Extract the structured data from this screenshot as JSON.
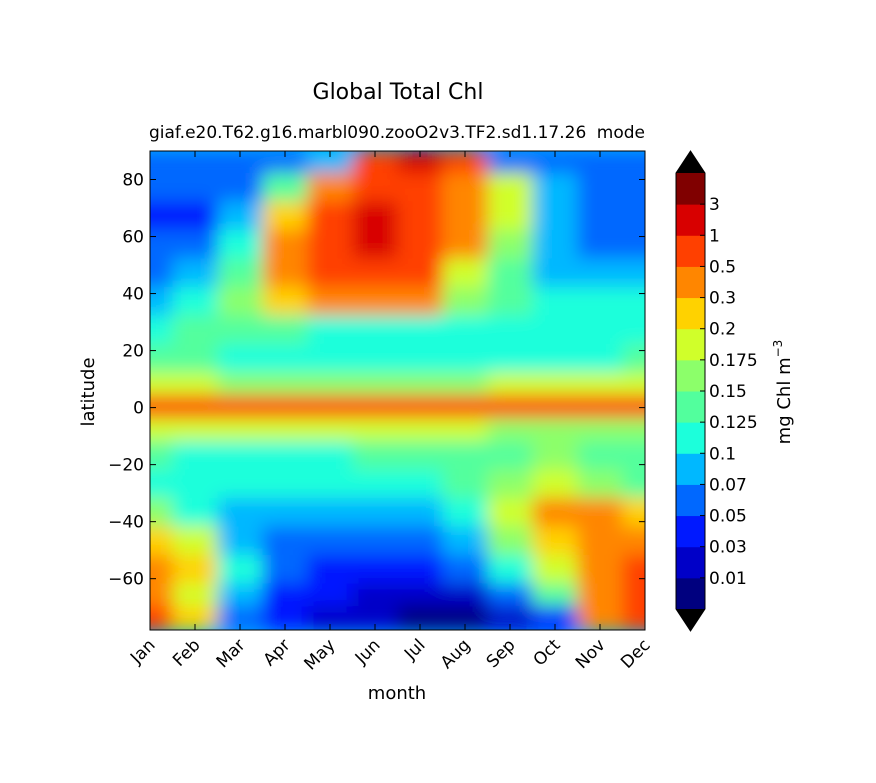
{
  "chart_data": {
    "type": "heatmap",
    "title": "Global Total Chl",
    "subtitle_left": "giaf.e20.T62.g16.marbl090.zooO2v3.TF2.sd1.17.26",
    "subtitle_right": "mode",
    "xlabel": "month",
    "ylabel": "latitude",
    "x_categories": [
      "Jan",
      "Feb",
      "Mar",
      "Apr",
      "May",
      "Jun",
      "Jul",
      "Aug",
      "Sep",
      "Oct",
      "Nov",
      "Dec"
    ],
    "ylim": [
      -78,
      90
    ],
    "y_ticks": [
      "80",
      "60",
      "40",
      "20",
      "0",
      "−20",
      "−40",
      "−60"
    ],
    "y_tick_values": [
      80,
      60,
      40,
      20,
      0,
      -20,
      -40,
      -60
    ],
    "colorbar": {
      "label": "mg Chl m",
      "label_sup": "−3",
      "levels": [
        "0.01",
        "0.03",
        "0.05",
        "0.07",
        "0.1",
        "0.125",
        "0.15",
        "0.175",
        "0.2",
        "0.3",
        "0.5",
        "1",
        "3"
      ],
      "colors": [
        "#00007f",
        "#0000c8",
        "#0019ff",
        "#0068ff",
        "#00b8ff",
        "#1cffdb",
        "#52ff9d",
        "#8cff6a",
        "#d0ff2a",
        "#ffd200",
        "#ff8600",
        "#ff4000",
        "#d80000",
        "#800000"
      ],
      "under_color": "#000000",
      "over_color": "#000000"
    },
    "bands": [
      {
        "lat": [
          82,
          90
        ],
        "months": [
          "Jan",
          "Feb",
          "Mar",
          "Apr",
          "May",
          "Jun",
          "Jul",
          "Aug",
          "Sep",
          "Oct",
          "Nov",
          "Dec"
        ],
        "levels": [
          3,
          3,
          3,
          3,
          4,
          11,
          12,
          11,
          3,
          3,
          3,
          3
        ]
      },
      {
        "lat": [
          72,
          82
        ],
        "months": [
          "Jan",
          "Feb",
          "Mar",
          "Apr",
          "May",
          "Jun",
          "Jul",
          "Aug",
          "Sep",
          "Oct",
          "Nov",
          "Dec"
        ],
        "levels": [
          3,
          3,
          3,
          6,
          10,
          11,
          11,
          10,
          8,
          4,
          3,
          3
        ]
      },
      {
        "lat": [
          62,
          72
        ],
        "months": [
          "Jan",
          "Feb",
          "Mar",
          "Apr",
          "May",
          "Jun",
          "Jul",
          "Aug",
          "Sep",
          "Oct",
          "Nov",
          "Dec"
        ],
        "levels": [
          2,
          2,
          4,
          9,
          11,
          12,
          11,
          10,
          8,
          4,
          3,
          3
        ]
      },
      {
        "lat": [
          52,
          62
        ],
        "months": [
          "Jan",
          "Feb",
          "Mar",
          "Apr",
          "May",
          "Jun",
          "Jul",
          "Aug",
          "Sep",
          "Oct",
          "Nov",
          "Dec"
        ],
        "levels": [
          3,
          3,
          5,
          10,
          11,
          12,
          11,
          10,
          7,
          4,
          3,
          3
        ]
      },
      {
        "lat": [
          42,
          52
        ],
        "months": [
          "Jan",
          "Feb",
          "Mar",
          "Apr",
          "May",
          "Jun",
          "Jul",
          "Aug",
          "Sep",
          "Oct",
          "Nov",
          "Dec"
        ],
        "levels": [
          3,
          4,
          6,
          10,
          11,
          11,
          11,
          8,
          6,
          4,
          4,
          4
        ]
      },
      {
        "lat": [
          32,
          42
        ],
        "months": [
          "Jan",
          "Feb",
          "Mar",
          "Apr",
          "May",
          "Jun",
          "Jul",
          "Aug",
          "Sep",
          "Oct",
          "Nov",
          "Dec"
        ],
        "levels": [
          4,
          5,
          7,
          9,
          10,
          10,
          10,
          7,
          6,
          5,
          5,
          5
        ]
      },
      {
        "lat": [
          22,
          32
        ],
        "months": [
          "Jan",
          "Feb",
          "Mar",
          "Apr",
          "May",
          "Jun",
          "Jul",
          "Aug",
          "Sep",
          "Oct",
          "Nov",
          "Dec"
        ],
        "levels": [
          5,
          6,
          6,
          6,
          5,
          5,
          5,
          5,
          5,
          5,
          5,
          5
        ]
      },
      {
        "lat": [
          12,
          22
        ],
        "months": [
          "Jan",
          "Feb",
          "Mar",
          "Apr",
          "May",
          "Jun",
          "Jul",
          "Aug",
          "Sep",
          "Oct",
          "Nov",
          "Dec"
        ],
        "levels": [
          6,
          6,
          5,
          5,
          5,
          5,
          5,
          5,
          5,
          5,
          5,
          6
        ]
      },
      {
        "lat": [
          4,
          12
        ],
        "months": [
          "Jan",
          "Feb",
          "Mar",
          "Apr",
          "May",
          "Jun",
          "Jul",
          "Aug",
          "Sep",
          "Oct",
          "Nov",
          "Dec"
        ],
        "levels": [
          8,
          8,
          7,
          7,
          7,
          7,
          7,
          7,
          8,
          8,
          8,
          8
        ]
      },
      {
        "lat": [
          -4,
          4
        ],
        "months": [
          "Jan",
          "Feb",
          "Mar",
          "Apr",
          "May",
          "Jun",
          "Jul",
          "Aug",
          "Sep",
          "Oct",
          "Nov",
          "Dec"
        ],
        "levels": [
          11,
          11,
          11,
          11,
          11,
          11,
          11,
          11,
          11,
          11,
          11,
          11
        ]
      },
      {
        "lat": [
          -12,
          -4
        ],
        "months": [
          "Jan",
          "Feb",
          "Mar",
          "Apr",
          "May",
          "Jun",
          "Jul",
          "Aug",
          "Sep",
          "Oct",
          "Nov",
          "Dec"
        ],
        "levels": [
          8,
          8,
          8,
          8,
          8,
          8,
          8,
          8,
          7,
          7,
          7,
          7
        ]
      },
      {
        "lat": [
          -22,
          -12
        ],
        "months": [
          "Jan",
          "Feb",
          "Mar",
          "Apr",
          "May",
          "Jun",
          "Jul",
          "Aug",
          "Sep",
          "Oct",
          "Nov",
          "Dec"
        ],
        "levels": [
          6,
          5,
          5,
          5,
          5,
          6,
          6,
          6,
          6,
          7,
          6,
          6
        ]
      },
      {
        "lat": [
          -32,
          -22
        ],
        "months": [
          "Jan",
          "Feb",
          "Mar",
          "Apr",
          "May",
          "Jun",
          "Jul",
          "Aug",
          "Sep",
          "Oct",
          "Nov",
          "Dec"
        ],
        "levels": [
          5,
          5,
          5,
          5,
          5,
          5,
          5,
          6,
          7,
          8,
          7,
          6
        ]
      },
      {
        "lat": [
          -42,
          -32
        ],
        "months": [
          "Jan",
          "Feb",
          "Mar",
          "Apr",
          "May",
          "Jun",
          "Jul",
          "Aug",
          "Sep",
          "Oct",
          "Nov",
          "Dec"
        ],
        "levels": [
          7,
          5,
          4,
          4,
          4,
          4,
          4,
          5,
          8,
          10,
          10,
          9
        ]
      },
      {
        "lat": [
          -52,
          -42
        ],
        "months": [
          "Jan",
          "Feb",
          "Mar",
          "Apr",
          "May",
          "Jun",
          "Jul",
          "Aug",
          "Sep",
          "Oct",
          "Nov",
          "Dec"
        ],
        "levels": [
          9,
          8,
          4,
          3,
          3,
          3,
          3,
          4,
          7,
          9,
          10,
          10
        ]
      },
      {
        "lat": [
          -62,
          -52
        ],
        "months": [
          "Jan",
          "Feb",
          "Mar",
          "Apr",
          "May",
          "Jun",
          "Jul",
          "Aug",
          "Sep",
          "Oct",
          "Nov",
          "Dec"
        ],
        "levels": [
          10,
          9,
          5,
          3,
          2,
          2,
          2,
          3,
          5,
          8,
          10,
          11
        ]
      },
      {
        "lat": [
          -70,
          -62
        ],
        "months": [
          "Jan",
          "Feb",
          "Mar",
          "Apr",
          "May",
          "Jun",
          "Jul",
          "Aug",
          "Sep",
          "Oct",
          "Nov",
          "Dec"
        ],
        "levels": [
          10,
          8,
          4,
          2,
          2,
          1,
          1,
          1,
          3,
          6,
          10,
          11
        ]
      },
      {
        "lat": [
          -78,
          -70
        ],
        "months": [
          "Jan",
          "Feb",
          "Mar",
          "Apr",
          "May",
          "Jun",
          "Jul",
          "Aug",
          "Sep",
          "Oct",
          "Nov",
          "Dec"
        ],
        "levels": [
          11,
          9,
          3,
          2,
          1,
          1,
          0,
          0,
          1,
          2,
          10,
          11
        ]
      }
    ]
  }
}
